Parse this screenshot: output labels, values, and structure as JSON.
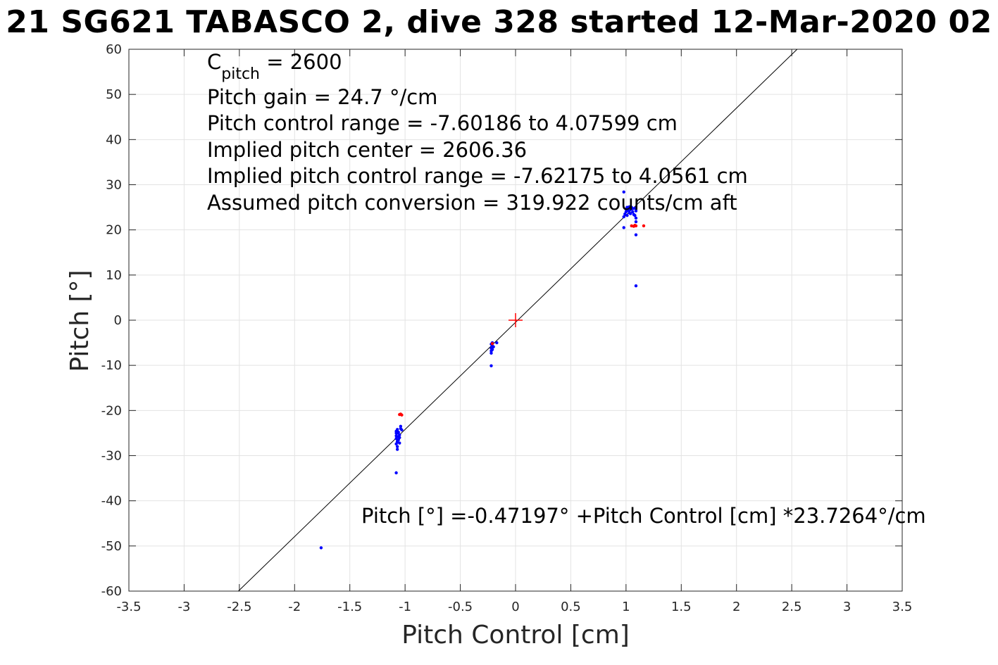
{
  "chart_data": {
    "type": "scatter",
    "title": "21 SG621 TABASCO 2, dive 328 started 12-Mar-2020 02",
    "xlabel": "Pitch Control [cm]",
    "ylabel": "Pitch [°]",
    "xlim": [
      -3.5,
      3.5
    ],
    "ylim": [
      -60,
      60
    ],
    "xticks": [
      -3.5,
      -3,
      -2.5,
      -2,
      -1.5,
      -1,
      -0.5,
      0,
      0.5,
      1,
      1.5,
      2,
      2.5,
      3,
      3.5
    ],
    "yticks": [
      -60,
      -50,
      -40,
      -30,
      -20,
      -10,
      0,
      10,
      20,
      30,
      40,
      50,
      60
    ],
    "xtick_labels": [
      "-3.5",
      "-3",
      "-2.5",
      "-2",
      "-1.5",
      "-1",
      "-0.5",
      "0",
      "0.5",
      "1",
      "1.5",
      "2",
      "2.5",
      "3",
      "3.5"
    ],
    "ytick_labels": [
      "-60",
      "-50",
      "-40",
      "-30",
      "-20",
      "-10",
      "0",
      "10",
      "20",
      "30",
      "40",
      "50",
      "60"
    ],
    "grid": true,
    "annotations": {
      "c_pitch_main": "C",
      "c_pitch_sub": "pitch",
      "c_pitch_value": " = 2600",
      "lines": [
        "Pitch gain = 24.7 °/cm",
        "Pitch control range = -7.60186 to 4.07599 cm",
        "Implied pitch center = 2606.36",
        "Implied pitch control range = -7.62175 to 4.0561 cm",
        "Assumed pitch conversion = 319.922 counts/cm aft"
      ],
      "fit_equation": "Pitch [°] =-0.47197° +Pitch Control [cm] *23.7264°/cm"
    },
    "fit_line": {
      "intercept": -0.47197,
      "slope": 23.7264,
      "color": "#000000"
    },
    "center_marker": {
      "x": 0,
      "y": 0,
      "color": "#ff0000"
    },
    "series": [
      {
        "color": "#0000ff",
        "points": [
          [
            -1.76,
            -50.4
          ],
          [
            -1.08,
            -33.8
          ],
          [
            -1.07,
            -28.6
          ],
          [
            -1.07,
            -28.0
          ],
          [
            -1.08,
            -27.4
          ],
          [
            -1.07,
            -26.8
          ],
          [
            -1.08,
            -26.2
          ],
          [
            -1.08,
            -25.6
          ],
          [
            -1.07,
            -25.0
          ],
          [
            -1.08,
            -24.6
          ],
          [
            -1.06,
            -25.8
          ],
          [
            -1.06,
            -26.5
          ],
          [
            -1.05,
            -27.2
          ],
          [
            -1.05,
            -25.4
          ],
          [
            -1.04,
            -24.0
          ],
          [
            -1.04,
            -23.5
          ],
          [
            -1.03,
            -24.3
          ],
          [
            -1.06,
            -24.8
          ],
          [
            -1.05,
            -26.0
          ],
          [
            -1.07,
            -27.0
          ],
          [
            -1.08,
            -25.0
          ],
          [
            -1.07,
            -24.2
          ],
          [
            -0.22,
            -10.1
          ],
          [
            -0.22,
            -7.3
          ],
          [
            -0.22,
            -6.8
          ],
          [
            -0.22,
            -6.2
          ],
          [
            -0.21,
            -5.7
          ],
          [
            -0.22,
            -5.3
          ],
          [
            -0.21,
            -5.0
          ],
          [
            -0.17,
            -5.0
          ],
          [
            -0.2,
            -5.9
          ],
          [
            -0.21,
            -6.5
          ],
          [
            0.98,
            28.4
          ],
          [
            0.98,
            20.5
          ],
          [
            0.98,
            22.9
          ],
          [
            0.99,
            23.5
          ],
          [
            1.0,
            24.0
          ],
          [
            1.0,
            24.6
          ],
          [
            1.01,
            25.0
          ],
          [
            1.02,
            24.3
          ],
          [
            1.03,
            23.8
          ],
          [
            1.04,
            24.5
          ],
          [
            1.05,
            25.0
          ],
          [
            1.06,
            24.0
          ],
          [
            1.07,
            23.4
          ],
          [
            1.08,
            24.8
          ],
          [
            1.08,
            23.2
          ],
          [
            1.09,
            22.6
          ],
          [
            1.09,
            21.8
          ],
          [
            1.09,
            24.2
          ],
          [
            1.01,
            23.2
          ],
          [
            1.02,
            24.9
          ],
          [
            1.04,
            23.6
          ],
          [
            1.06,
            24.7
          ],
          [
            1.03,
            25.1
          ],
          [
            1.09,
            18.9
          ],
          [
            1.09,
            7.6
          ]
        ]
      },
      {
        "color": "#ff0000",
        "points": [
          [
            -1.04,
            -20.8
          ],
          [
            -1.03,
            -21.0
          ],
          [
            -1.05,
            -20.9
          ],
          [
            -0.21,
            -5.2
          ],
          [
            1.05,
            20.9
          ],
          [
            1.07,
            20.8
          ],
          [
            1.08,
            21.0
          ],
          [
            1.09,
            20.9
          ],
          [
            1.16,
            20.9
          ]
        ]
      }
    ]
  }
}
